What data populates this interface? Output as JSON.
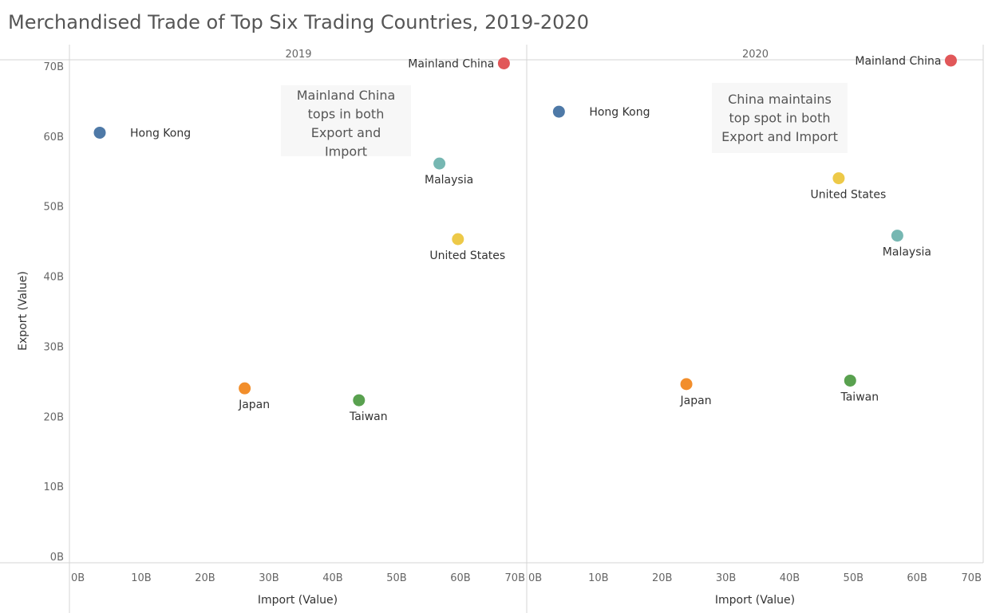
{
  "title": "Merchandised Trade of Top Six Trading Countries, 2019-2020",
  "chart_data": {
    "type": "scatter",
    "title": "Merchandised Trade of Top Six Trading Countries, 2019-2020",
    "xlabel": "Import (Value)",
    "ylabel": "Export (Value)",
    "xlim": [
      0,
      70
    ],
    "ylim": [
      0,
      70
    ],
    "x_ticks": [
      "0B",
      "10B",
      "20B",
      "30B",
      "40B",
      "50B",
      "60B",
      "70B"
    ],
    "y_ticks": [
      "0B",
      "10B",
      "20B",
      "30B",
      "40B",
      "50B",
      "60B",
      "70B"
    ],
    "grid": false,
    "unit": "B",
    "colors": {
      "Hong Kong": "#4e79a7",
      "Mainland China": "#e15759",
      "Malaysia": "#76b7b2",
      "United States": "#edc948",
      "Japan": "#f28e2b",
      "Taiwan": "#59a14f"
    },
    "panels": [
      {
        "label": "2019",
        "annotation": [
          "Mainland China",
          "tops in both",
          "Export and",
          "Import"
        ],
        "points": [
          {
            "name": "Hong Kong",
            "x": 3.5,
            "y": 60.5
          },
          {
            "name": "Mainland China",
            "x": 66.8,
            "y": 70.4
          },
          {
            "name": "Malaysia",
            "x": 56.7,
            "y": 56.1
          },
          {
            "name": "United States",
            "x": 59.6,
            "y": 45.3
          },
          {
            "name": "Japan",
            "x": 26.2,
            "y": 24.0
          },
          {
            "name": "Taiwan",
            "x": 44.1,
            "y": 22.3
          }
        ]
      },
      {
        "label": "2020",
        "annotation": [
          "China maintains",
          "top spot in both",
          "Export and Import"
        ],
        "points": [
          {
            "name": "Hong Kong",
            "x": 3.8,
            "y": 63.5
          },
          {
            "name": "Mainland China",
            "x": 65.3,
            "y": 70.8
          },
          {
            "name": "Malaysia",
            "x": 56.9,
            "y": 45.8
          },
          {
            "name": "United States",
            "x": 47.7,
            "y": 54.0
          },
          {
            "name": "Japan",
            "x": 23.8,
            "y": 24.6
          },
          {
            "name": "Taiwan",
            "x": 49.5,
            "y": 25.1
          }
        ]
      }
    ]
  }
}
